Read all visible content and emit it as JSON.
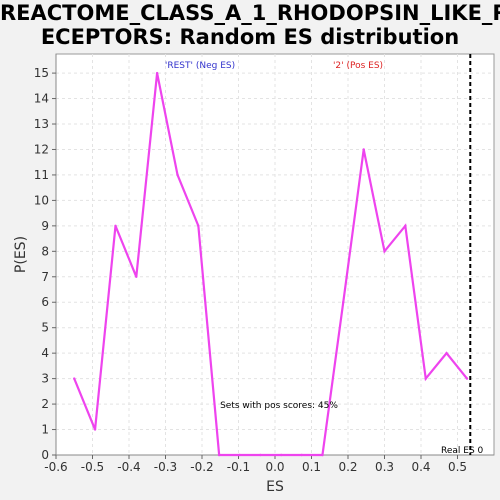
{
  "title_line1": "REACTOME_CLASS_A_1_RHODOPSIN_LIKE_R",
  "title_line2": "ECEPTORS: Random ES distribution",
  "chart_data": {
    "type": "line",
    "title": "REACTOME_CLASS_A_1_RHODOPSIN_LIKE_RECEPTORS: Random ES distribution",
    "xlabel": "ES",
    "ylabel": "P(ES)",
    "xlim": [
      -0.6,
      0.6
    ],
    "ylim": [
      0,
      15.75
    ],
    "xticks": [
      -0.6,
      -0.5,
      -0.4,
      -0.3,
      -0.2,
      -0.1,
      0.0,
      0.1,
      0.2,
      0.3,
      0.4,
      0.5
    ],
    "xtick_labels": [
      "-0.6",
      "-0.5",
      "-0.4",
      "-0.3",
      "-0.2",
      "-0.1",
      "0.0",
      "0.1",
      "0.2",
      "0.3",
      "0.4",
      "0.5"
    ],
    "yticks": [
      0,
      1,
      2,
      3,
      4,
      5,
      6,
      7,
      8,
      9,
      10,
      11,
      12,
      13,
      14,
      15
    ],
    "grid": true,
    "series": [
      {
        "color": "#ee44ee",
        "x": [
          -0.55,
          -0.493,
          -0.437,
          -0.38,
          -0.323,
          -0.267,
          -0.21,
          -0.153,
          -0.097,
          -0.04,
          0.017,
          0.073,
          0.13,
          0.187,
          0.243,
          0.3,
          0.357,
          0.413,
          0.47,
          0.526
        ],
        "y": [
          3,
          1,
          9,
          7,
          15,
          11,
          9,
          0,
          0,
          0,
          0,
          0,
          0,
          6,
          12,
          8,
          9,
          3,
          4,
          3
        ]
      }
    ],
    "real_es": {
      "x": 0.535,
      "label": "Real ES 0"
    },
    "annotations": {
      "neg_label": "'REST' (Neg ES)",
      "neg_color": "#3333cc",
      "pos_label": "'2' (Pos ES)",
      "pos_color": "#dd2222",
      "pos_scores_text": "Sets with pos scores: 45%"
    }
  }
}
